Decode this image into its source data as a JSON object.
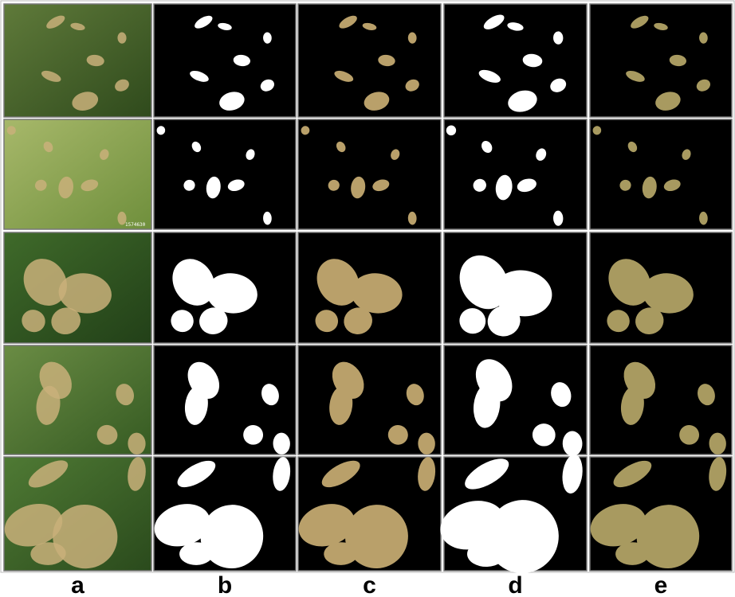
{
  "column_labels": [
    "a",
    "b",
    "c",
    "d",
    "e"
  ],
  "image_stamp": "1574630"
}
